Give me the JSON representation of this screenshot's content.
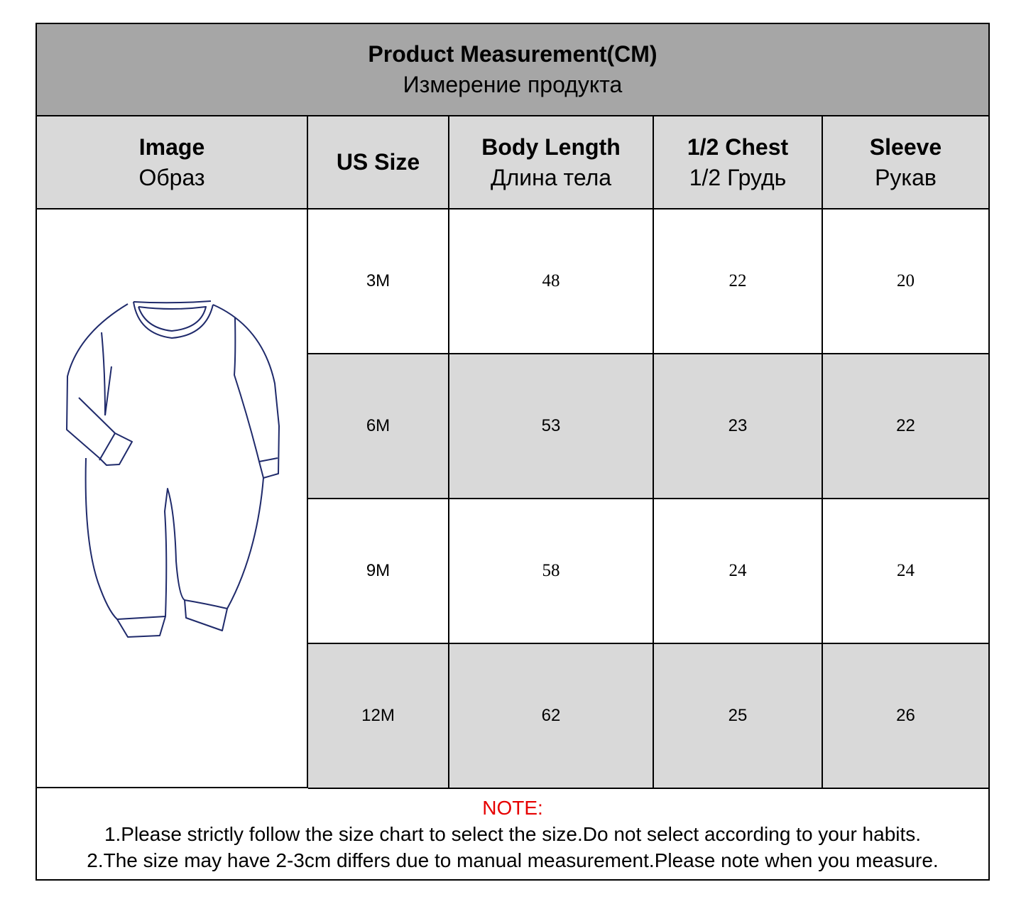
{
  "title": {
    "en": "Product Measurement(CM)",
    "ru": "Измерение продукта"
  },
  "columns": [
    {
      "en": "Image",
      "ru": "Образ"
    },
    {
      "en": "US Size",
      "ru": ""
    },
    {
      "en": "Body Length",
      "ru": "Длина тела"
    },
    {
      "en": "1/2 Chest",
      "ru": "1/2 Грудь"
    },
    {
      "en": "Sleeve",
      "ru": "Рукав"
    }
  ],
  "rows": [
    {
      "size": "3M",
      "body_length": "48",
      "half_chest": "22",
      "sleeve": "20"
    },
    {
      "size": "6M",
      "body_length": "53",
      "half_chest": "23",
      "sleeve": "22"
    },
    {
      "size": "9M",
      "body_length": "58",
      "half_chest": "24",
      "sleeve": "24"
    },
    {
      "size": "12M",
      "body_length": "62",
      "half_chest": "25",
      "sleeve": "26"
    }
  ],
  "image": {
    "icon": "baby-romper-outline-drawing",
    "stroke_color": "#1f2a6b"
  },
  "note": {
    "label": "NOTE:",
    "lines": [
      "1.Please strictly follow the size chart to select the size.Do not select according to your habits.",
      "2.The size may have 2-3cm differs due to manual measurement.Please note when you measure."
    ],
    "label_color": "#e60000"
  },
  "colors": {
    "title_bg": "#a6a6a6",
    "header_bg": "#d9d9d9",
    "alt_row_bg": "#d9d9d9"
  }
}
